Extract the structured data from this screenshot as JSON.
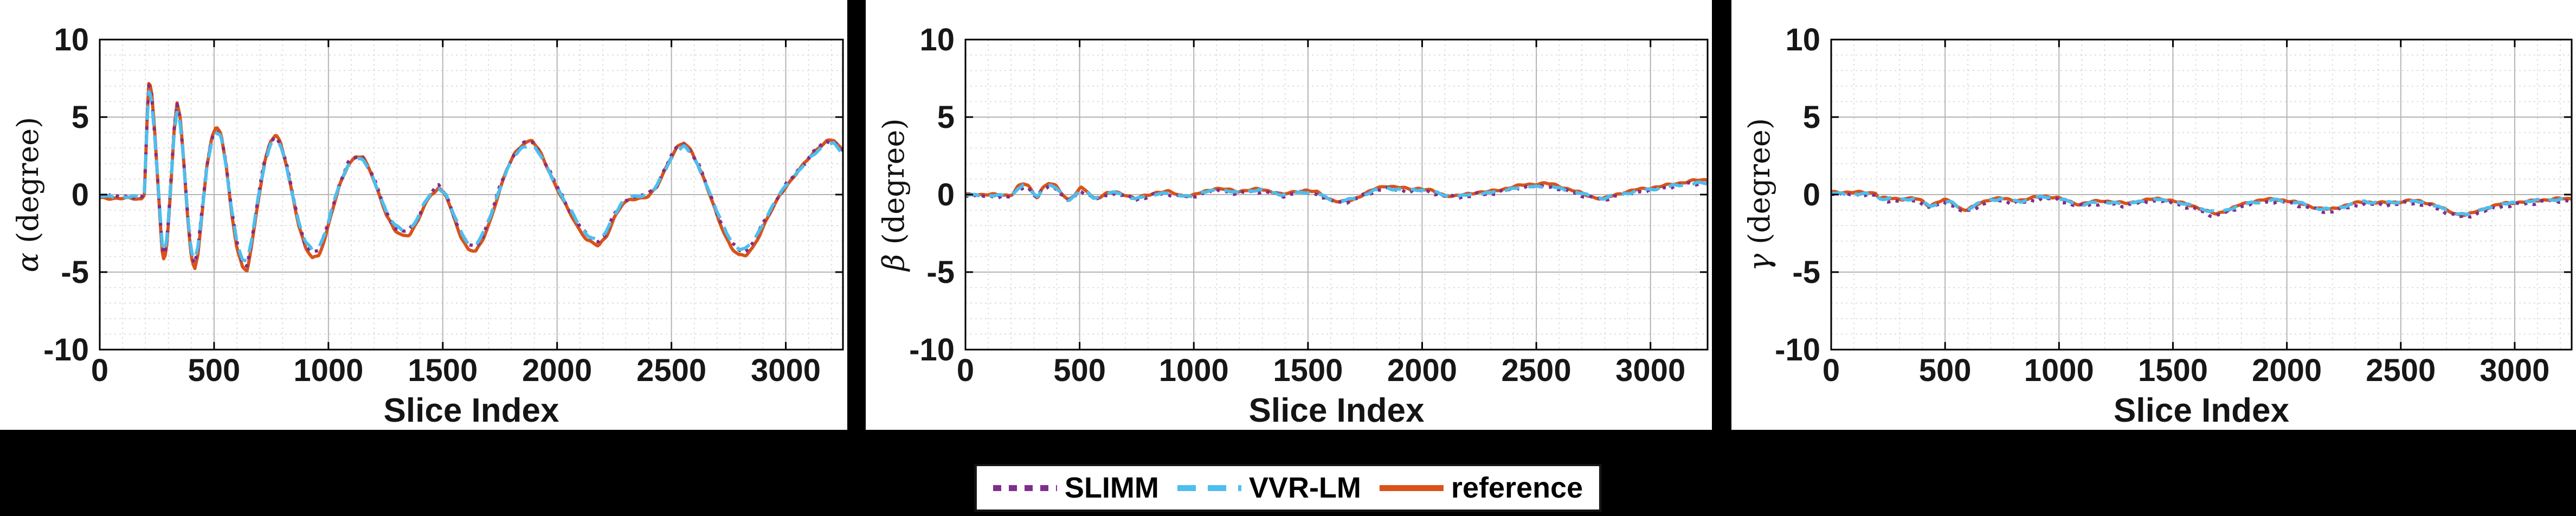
{
  "figure": {
    "background": "#000000",
    "panel_background": "#ffffff"
  },
  "axes_style": {
    "border_color": "#000000",
    "tick_label_color": "#171717",
    "major_grid_color": "#b4b4b4",
    "minor_grid_color": "#d8d8d8",
    "x_minor_step": 100,
    "y_minor_step": 1
  },
  "legend": {
    "items": [
      {
        "label": "SLIMM",
        "color": "#7E2F8E",
        "style": "dotted"
      },
      {
        "label": "VVR-LM",
        "color": "#4DBEEE",
        "style": "dashed"
      },
      {
        "label": "reference",
        "color": "#D95319",
        "style": "solid"
      }
    ]
  },
  "chart_data": [
    {
      "type": "line",
      "id": "alpha",
      "ylabel_symbol": "α",
      "ylabel_unit": "(degree)",
      "xlabel": "Slice Index",
      "xlim": [
        0,
        3250
      ],
      "ylim": [
        -10,
        10
      ],
      "x_ticks": [
        0,
        500,
        1000,
        1500,
        2000,
        2500,
        3000
      ],
      "y_ticks": [
        10,
        5,
        0,
        -5,
        -10
      ],
      "grid": "on",
      "series": [
        {
          "name": "reference",
          "color": "#D95319",
          "style": "solid",
          "scale": 1.05,
          "offset": -0.1,
          "noise": 0.1,
          "phase": 0.0
        },
        {
          "name": "SLIMM",
          "color": "#7E2F8E",
          "style": "dotted",
          "scale": 1.0,
          "offset": 0.03,
          "noise": 0.17,
          "phase": 1.6
        },
        {
          "name": "VVR-LM",
          "color": "#4DBEEE",
          "style": "dashed",
          "scale": 0.96,
          "offset": 0.0,
          "noise": 0.12,
          "phase": 3.1
        }
      ],
      "points": [
        [
          0,
          -0.15
        ],
        [
          185,
          -0.15
        ],
        [
          196,
          0.2
        ],
        [
          205,
          4.0
        ],
        [
          213,
          7.0
        ],
        [
          225,
          6.7
        ],
        [
          240,
          4.0
        ],
        [
          258,
          0.0
        ],
        [
          272,
          -3.3
        ],
        [
          282,
          -4.05
        ],
        [
          295,
          -2.8
        ],
        [
          310,
          0.5
        ],
        [
          325,
          4.0
        ],
        [
          338,
          5.7
        ],
        [
          352,
          4.8
        ],
        [
          368,
          2.0
        ],
        [
          385,
          -1.5
        ],
        [
          400,
          -3.8
        ],
        [
          415,
          -4.5
        ],
        [
          430,
          -3.5
        ],
        [
          448,
          -1.0
        ],
        [
          468,
          1.8
        ],
        [
          490,
          3.6
        ],
        [
          510,
          4.2
        ],
        [
          530,
          3.9
        ],
        [
          552,
          2.0
        ],
        [
          575,
          -0.8
        ],
        [
          600,
          -3.2
        ],
        [
          625,
          -4.4
        ],
        [
          645,
          -4.6
        ],
        [
          665,
          -3.0
        ],
        [
          690,
          -0.5
        ],
        [
          720,
          2.0
        ],
        [
          745,
          3.3
        ],
        [
          770,
          3.7
        ],
        [
          790,
          3.3
        ],
        [
          815,
          2.0
        ],
        [
          840,
          0.3
        ],
        [
          870,
          -1.8
        ],
        [
          900,
          -3.2
        ],
        [
          930,
          -3.75
        ],
        [
          958,
          -3.6
        ],
        [
          985,
          -2.6
        ],
        [
          1015,
          -1.0
        ],
        [
          1050,
          0.7
        ],
        [
          1085,
          1.9
        ],
        [
          1120,
          2.4
        ],
        [
          1152,
          2.35
        ],
        [
          1185,
          1.5
        ],
        [
          1220,
          0.2
        ],
        [
          1255,
          -1.2
        ],
        [
          1290,
          -2.1
        ],
        [
          1325,
          -2.4
        ],
        [
          1355,
          -2.35
        ],
        [
          1390,
          -1.6
        ],
        [
          1420,
          -0.6
        ],
        [
          1450,
          0.1
        ],
        [
          1483,
          0.5
        ],
        [
          1515,
          0.0
        ],
        [
          1545,
          -1.2
        ],
        [
          1580,
          -2.5
        ],
        [
          1610,
          -3.2
        ],
        [
          1644,
          -3.4
        ],
        [
          1675,
          -2.7
        ],
        [
          1710,
          -1.4
        ],
        [
          1745,
          0.2
        ],
        [
          1780,
          1.6
        ],
        [
          1815,
          2.6
        ],
        [
          1850,
          3.2
        ],
        [
          1890,
          3.45
        ],
        [
          1930,
          2.6
        ],
        [
          1970,
          1.4
        ],
        [
          2010,
          0.2
        ],
        [
          2050,
          -0.9
        ],
        [
          2090,
          -1.9
        ],
        [
          2130,
          -2.7
        ],
        [
          2180,
          -3.1
        ],
        [
          2215,
          -2.5
        ],
        [
          2250,
          -1.3
        ],
        [
          2285,
          -0.5
        ],
        [
          2320,
          -0.2
        ],
        [
          2360,
          -0.1
        ],
        [
          2400,
          0.0
        ],
        [
          2435,
          0.5
        ],
        [
          2465,
          1.4
        ],
        [
          2495,
          2.3
        ],
        [
          2525,
          3.0
        ],
        [
          2555,
          3.25
        ],
        [
          2585,
          2.8
        ],
        [
          2615,
          2.0
        ],
        [
          2645,
          1.0
        ],
        [
          2675,
          -0.2
        ],
        [
          2705,
          -1.4
        ],
        [
          2735,
          -2.4
        ],
        [
          2765,
          -3.2
        ],
        [
          2795,
          -3.65
        ],
        [
          2825,
          -3.7
        ],
        [
          2855,
          -3.2
        ],
        [
          2885,
          -2.4
        ],
        [
          2915,
          -1.5
        ],
        [
          2945,
          -0.7
        ],
        [
          2975,
          0.1
        ],
        [
          3005,
          0.7
        ],
        [
          3040,
          1.3
        ],
        [
          3075,
          1.9
        ],
        [
          3110,
          2.5
        ],
        [
          3145,
          3.0
        ],
        [
          3180,
          3.35
        ],
        [
          3210,
          3.4
        ],
        [
          3235,
          3.0
        ],
        [
          3250,
          2.85
        ]
      ]
    },
    {
      "type": "line",
      "id": "beta",
      "ylabel_symbol": "β",
      "ylabel_unit": "(degree)",
      "xlabel": "Slice Index",
      "xlim": [
        0,
        3250
      ],
      "ylim": [
        -10,
        10
      ],
      "x_ticks": [
        0,
        500,
        1000,
        1500,
        2000,
        2500,
        3000
      ],
      "y_ticks": [
        10,
        5,
        0,
        -5,
        -10
      ],
      "grid": "on",
      "series": [
        {
          "name": "reference",
          "color": "#D95319",
          "style": "solid",
          "scale": 1.12,
          "offset": 0.04,
          "noise": 0.09,
          "phase": 0.0
        },
        {
          "name": "SLIMM",
          "color": "#7E2F8E",
          "style": "dotted",
          "scale": 1.0,
          "offset": -0.06,
          "noise": 0.15,
          "phase": 1.6
        },
        {
          "name": "VVR-LM",
          "color": "#4DBEEE",
          "style": "dashed",
          "scale": 0.95,
          "offset": 0.0,
          "noise": 0.1,
          "phase": 3.1
        }
      ],
      "points": [
        [
          0,
          -0.05
        ],
        [
          190,
          -0.05
        ],
        [
          205,
          0.0
        ],
        [
          230,
          0.45
        ],
        [
          255,
          0.6
        ],
        [
          275,
          0.5
        ],
        [
          295,
          0.1
        ],
        [
          315,
          -0.2
        ],
        [
          335,
          0.3
        ],
        [
          365,
          0.6
        ],
        [
          395,
          0.45
        ],
        [
          420,
          0.05
        ],
        [
          450,
          -0.35
        ],
        [
          475,
          -0.1
        ],
        [
          505,
          0.35
        ],
        [
          530,
          0.2
        ],
        [
          560,
          -0.2
        ],
        [
          590,
          -0.15
        ],
        [
          620,
          0.05
        ],
        [
          660,
          0.1
        ],
        [
          700,
          -0.05
        ],
        [
          745,
          -0.3
        ],
        [
          790,
          -0.1
        ],
        [
          840,
          0.1
        ],
        [
          890,
          0.15
        ],
        [
          940,
          -0.05
        ],
        [
          990,
          -0.1
        ],
        [
          1040,
          0.1
        ],
        [
          1090,
          0.3
        ],
        [
          1140,
          0.25
        ],
        [
          1190,
          0.15
        ],
        [
          1240,
          0.25
        ],
        [
          1290,
          0.3
        ],
        [
          1340,
          0.15
        ],
        [
          1390,
          -0.05
        ],
        [
          1440,
          0.1
        ],
        [
          1490,
          0.2
        ],
        [
          1540,
          0.1
        ],
        [
          1590,
          -0.25
        ],
        [
          1640,
          -0.45
        ],
        [
          1690,
          -0.35
        ],
        [
          1740,
          -0.05
        ],
        [
          1790,
          0.25
        ],
        [
          1840,
          0.45
        ],
        [
          1890,
          0.4
        ],
        [
          1940,
          0.3
        ],
        [
          1990,
          0.35
        ],
        [
          2040,
          0.2
        ],
        [
          2090,
          -0.05
        ],
        [
          2140,
          -0.15
        ],
        [
          2190,
          -0.05
        ],
        [
          2240,
          0.1
        ],
        [
          2290,
          0.15
        ],
        [
          2340,
          0.25
        ],
        [
          2390,
          0.4
        ],
        [
          2440,
          0.5
        ],
        [
          2490,
          0.55
        ],
        [
          2540,
          0.6
        ],
        [
          2590,
          0.5
        ],
        [
          2640,
          0.3
        ],
        [
          2690,
          0.1
        ],
        [
          2740,
          -0.15
        ],
        [
          2790,
          -0.3
        ],
        [
          2840,
          -0.1
        ],
        [
          2890,
          0.1
        ],
        [
          2940,
          0.25
        ],
        [
          2990,
          0.35
        ],
        [
          3040,
          0.45
        ],
        [
          3090,
          0.55
        ],
        [
          3140,
          0.65
        ],
        [
          3190,
          0.75
        ],
        [
          3250,
          0.8
        ]
      ]
    },
    {
      "type": "line",
      "id": "gamma",
      "ylabel_symbol": "γ",
      "ylabel_unit": "(degree)",
      "xlabel": "Slice Index",
      "xlim": [
        0,
        3250
      ],
      "ylim": [
        -10,
        10
      ],
      "x_ticks": [
        0,
        500,
        1000,
        1500,
        2000,
        2500,
        3000
      ],
      "y_ticks": [
        10,
        5,
        0,
        -5,
        -10
      ],
      "grid": "on",
      "series": [
        {
          "name": "reference",
          "color": "#D95319",
          "style": "solid",
          "scale": 1.05,
          "offset": 0.08,
          "noise": 0.09,
          "phase": 0.0
        },
        {
          "name": "SLIMM",
          "color": "#7E2F8E",
          "style": "dotted",
          "scale": 1.07,
          "offset": -0.05,
          "noise": 0.15,
          "phase": 1.6
        },
        {
          "name": "VVR-LM",
          "color": "#4DBEEE",
          "style": "dashed",
          "scale": 0.95,
          "offset": 0.0,
          "noise": 0.11,
          "phase": 3.1
        }
      ],
      "points": [
        [
          0,
          0.05
        ],
        [
          195,
          0.05
        ],
        [
          210,
          -0.25
        ],
        [
          260,
          -0.3
        ],
        [
          310,
          -0.35
        ],
        [
          360,
          -0.3
        ],
        [
          400,
          -0.5
        ],
        [
          430,
          -0.8
        ],
        [
          465,
          -0.55
        ],
        [
          495,
          -0.4
        ],
        [
          525,
          -0.5
        ],
        [
          560,
          -0.85
        ],
        [
          595,
          -1.0
        ],
        [
          640,
          -0.7
        ],
        [
          690,
          -0.4
        ],
        [
          740,
          -0.3
        ],
        [
          790,
          -0.45
        ],
        [
          840,
          -0.4
        ],
        [
          890,
          -0.25
        ],
        [
          940,
          -0.15
        ],
        [
          990,
          -0.25
        ],
        [
          1040,
          -0.5
        ],
        [
          1090,
          -0.7
        ],
        [
          1140,
          -0.55
        ],
        [
          1190,
          -0.45
        ],
        [
          1240,
          -0.5
        ],
        [
          1290,
          -0.6
        ],
        [
          1340,
          -0.5
        ],
        [
          1390,
          -0.4
        ],
        [
          1440,
          -0.35
        ],
        [
          1490,
          -0.45
        ],
        [
          1540,
          -0.6
        ],
        [
          1590,
          -0.75
        ],
        [
          1640,
          -1.05
        ],
        [
          1690,
          -1.25
        ],
        [
          1740,
          -1.05
        ],
        [
          1790,
          -0.75
        ],
        [
          1840,
          -0.55
        ],
        [
          1890,
          -0.4
        ],
        [
          1940,
          -0.35
        ],
        [
          1990,
          -0.4
        ],
        [
          2040,
          -0.55
        ],
        [
          2090,
          -0.75
        ],
        [
          2140,
          -0.95
        ],
        [
          2190,
          -1.0
        ],
        [
          2240,
          -0.8
        ],
        [
          2290,
          -0.6
        ],
        [
          2340,
          -0.5
        ],
        [
          2390,
          -0.55
        ],
        [
          2440,
          -0.6
        ],
        [
          2490,
          -0.55
        ],
        [
          2540,
          -0.45
        ],
        [
          2590,
          -0.5
        ],
        [
          2640,
          -0.65
        ],
        [
          2690,
          -0.95
        ],
        [
          2740,
          -1.25
        ],
        [
          2790,
          -1.35
        ],
        [
          2840,
          -1.1
        ],
        [
          2890,
          -0.85
        ],
        [
          2940,
          -0.65
        ],
        [
          2990,
          -0.55
        ],
        [
          3040,
          -0.5
        ],
        [
          3090,
          -0.45
        ],
        [
          3140,
          -0.4
        ],
        [
          3190,
          -0.35
        ],
        [
          3250,
          -0.35
        ]
      ]
    }
  ]
}
